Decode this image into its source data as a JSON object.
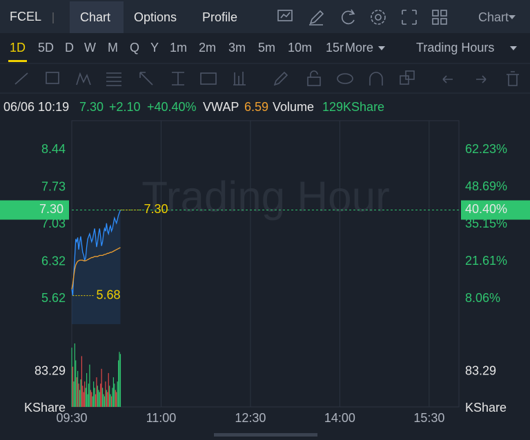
{
  "toolbar": {
    "symbol": "FCEL",
    "tabs": [
      "Chart",
      "Options",
      "Profile"
    ],
    "chart_menu": "Chart"
  },
  "periods": {
    "items": [
      "1D",
      "5D",
      "D",
      "W",
      "M",
      "Q",
      "Y",
      "1m",
      "2m",
      "3m",
      "5m",
      "10m",
      "15r"
    ],
    "more": "More",
    "session": "Trading Hours"
  },
  "quote": {
    "time": "06/06 10:19",
    "price": "7.30",
    "change": "+2.10",
    "change_pct": "+40.40%",
    "vwap_label": "VWAP",
    "vwap": "6.59",
    "volume_label": "Volume",
    "volume": "129KShare"
  },
  "chart_data": {
    "type": "line",
    "watermark": "Trading Hour",
    "x": [
      0,
      1,
      2,
      3,
      4,
      5,
      6,
      7,
      8,
      9,
      10,
      11,
      12,
      13,
      14,
      15,
      16,
      17,
      18,
      19,
      20,
      21,
      22,
      23,
      24,
      25,
      26,
      27,
      28,
      29,
      30,
      31,
      32,
      33,
      34,
      35,
      36,
      37,
      38,
      39,
      40,
      41,
      42,
      43,
      44,
      45,
      46,
      47,
      48,
      49
    ],
    "xlim": [
      0,
      390
    ],
    "xticks": [
      {
        "value": 0,
        "label": "09:30"
      },
      {
        "value": 90,
        "label": "11:00"
      },
      {
        "value": 180,
        "label": "12:30"
      },
      {
        "value": 270,
        "label": "14:00"
      },
      {
        "value": 360,
        "label": "15:30"
      }
    ],
    "series": [
      {
        "color": "#2f8fff",
        "values": [
          5.8,
          5.68,
          6.1,
          6.4,
          6.75,
          6.7,
          6.78,
          6.55,
          6.7,
          6.8,
          6.65,
          6.5,
          6.45,
          6.35,
          6.4,
          6.6,
          6.75,
          6.8,
          6.85,
          6.78,
          6.7,
          6.75,
          6.85,
          6.95,
          6.8,
          6.6,
          6.7,
          6.85,
          6.95,
          6.8,
          6.62,
          6.7,
          6.85,
          6.95,
          6.9,
          7.05,
          6.9,
          6.85,
          6.95,
          7.0,
          6.9,
          6.95,
          7.05,
          7.15,
          7.1,
          7.05,
          7.12,
          7.2,
          7.25,
          7.3
        ]
      },
      {
        "name": "VWAP",
        "color": "#f0a030",
        "values": [
          5.8,
          5.9,
          6.05,
          6.18,
          6.26,
          6.3,
          6.33,
          6.34,
          6.35,
          6.35,
          6.35,
          6.35,
          6.34,
          6.34,
          6.34,
          6.35,
          6.36,
          6.37,
          6.38,
          6.39,
          6.4,
          6.4,
          6.41,
          6.42,
          6.42,
          6.42,
          6.42,
          6.43,
          6.44,
          6.44,
          6.44,
          6.44,
          6.45,
          6.46,
          6.46,
          6.47,
          6.48,
          6.48,
          6.49,
          6.5,
          6.5,
          6.51,
          6.52,
          6.53,
          6.54,
          6.55,
          6.56,
          6.57,
          6.58,
          6.59
        ]
      }
    ],
    "ylim": [
      5.14,
      8.99
    ],
    "yticks": [
      5.62,
      6.32,
      7.03,
      7.73,
      8.44
    ],
    "y2lim": [
      -1.15,
      72.88
    ],
    "y2ticks": [
      {
        "value": 8.06,
        "label": "8.06%"
      },
      {
        "value": 21.61,
        "label": "21.61%"
      },
      {
        "value": 35.15,
        "label": "35.15%"
      },
      {
        "value": 48.69,
        "label": "48.69%"
      },
      {
        "value": 62.23,
        "label": "62.23%"
      }
    ],
    "last": {
      "value": 7.3,
      "label": "7.30"
    },
    "last_pct": {
      "value": 40.4,
      "label": "40.40%"
    },
    "high": {
      "value": 7.3,
      "label": "7.30"
    },
    "low": 5.68,
    "volume": {
      "values": [
        140,
        95,
        60,
        150,
        110,
        70,
        85,
        55,
        40,
        65,
        120,
        50,
        35,
        60,
        45,
        80,
        30,
        55,
        100,
        40,
        35,
        25,
        60,
        45,
        30,
        70,
        50,
        40,
        35,
        55,
        90,
        45,
        30,
        25,
        60,
        40,
        35,
        80,
        50,
        30,
        25,
        45,
        70,
        55,
        40,
        35,
        60,
        110,
        130,
        125
      ],
      "up_color": "#2fc46f",
      "down_color": "#e04848",
      "vlim": [
        0,
        163
      ],
      "vticks": [
        83.29
      ],
      "unit": "KShare"
    }
  }
}
